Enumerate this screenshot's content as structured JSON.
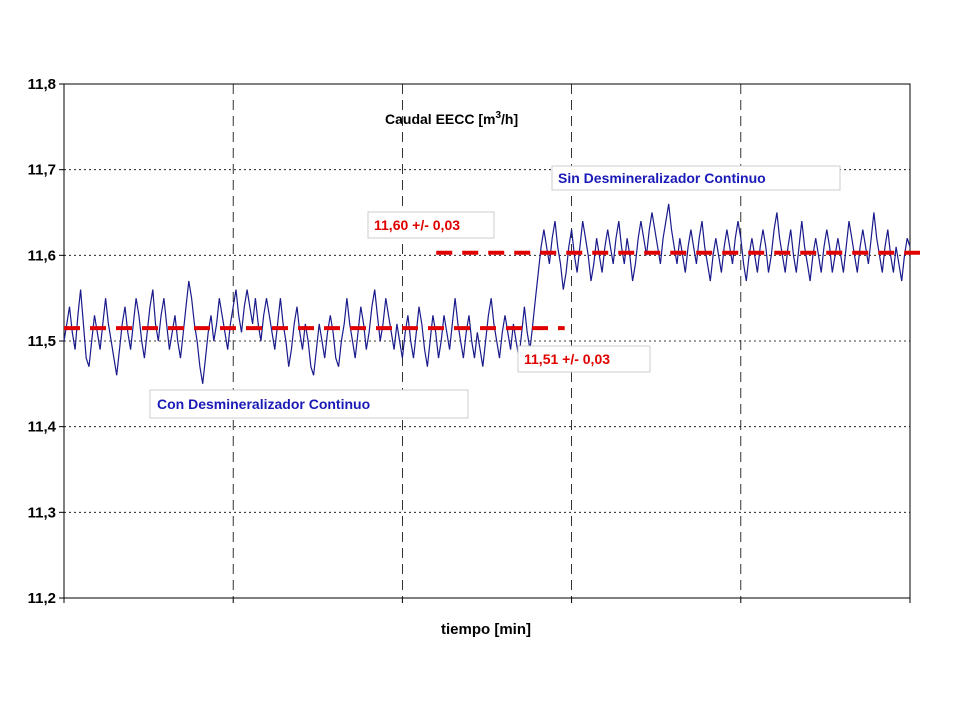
{
  "chart_data": {
    "type": "line",
    "title_prefix": "Caudal EECC [m",
    "title_sup": "3",
    "title_suffix": "/h]",
    "xlabel": "tiempo [min]",
    "ylabel": "",
    "ylim": [
      11.2,
      11.8
    ],
    "yticks": [
      "11,2",
      "11,3",
      "11,4",
      "11,5",
      "11,6",
      "11,7",
      "11,8"
    ],
    "ytick_values": [
      11.2,
      11.3,
      11.4,
      11.5,
      11.6,
      11.7,
      11.8
    ],
    "x_divisions": 5,
    "grid": true,
    "line_color": "#1a1a8c",
    "series": [
      {
        "values": [
          11.5,
          11.52,
          11.54,
          11.51,
          11.49,
          11.53,
          11.56,
          11.52,
          11.48,
          11.47,
          11.5,
          11.53,
          11.51,
          11.49,
          11.52,
          11.55,
          11.52,
          11.5,
          11.48,
          11.46,
          11.49,
          11.52,
          11.54,
          11.51,
          11.49,
          11.52,
          11.55,
          11.53,
          11.5,
          11.48,
          11.51,
          11.54,
          11.56,
          11.52,
          11.5,
          11.53,
          11.55,
          11.52,
          11.49,
          11.51,
          11.53,
          11.5,
          11.48,
          11.51,
          11.54,
          11.57,
          11.55,
          11.52,
          11.5,
          11.47,
          11.45,
          11.48,
          11.51,
          11.53,
          11.5,
          11.52,
          11.55,
          11.53,
          11.51,
          11.49,
          11.52,
          11.54,
          11.56,
          11.53,
          11.51,
          11.54,
          11.56,
          11.54,
          11.52,
          11.55,
          11.52,
          11.5,
          11.53,
          11.55,
          11.53,
          11.51,
          11.49,
          11.52,
          11.55,
          11.52,
          11.5,
          11.47,
          11.49,
          11.52,
          11.54,
          11.51,
          11.49,
          11.52,
          11.5,
          11.47,
          11.46,
          11.49,
          11.52,
          11.5,
          11.48,
          11.51,
          11.53,
          11.51,
          11.48,
          11.47,
          11.5,
          11.52,
          11.55,
          11.52,
          11.5,
          11.48,
          11.51,
          11.54,
          11.52,
          11.49,
          11.51,
          11.54,
          11.56,
          11.53,
          11.5,
          11.52,
          11.55,
          11.53,
          11.51,
          11.49,
          11.52,
          11.5,
          11.48,
          11.51,
          11.53,
          11.5,
          11.48,
          11.51,
          11.54,
          11.52,
          11.49,
          11.47,
          11.5,
          11.53,
          11.51,
          11.48,
          11.5,
          11.53,
          11.51,
          11.49,
          11.52,
          11.55,
          11.52,
          11.5,
          11.48,
          11.51,
          11.53,
          11.5,
          11.48,
          11.51,
          11.49,
          11.47,
          11.5,
          11.53,
          11.55,
          11.52,
          11.5,
          11.48,
          11.51,
          11.53,
          11.51,
          11.49,
          11.52,
          11.5,
          11.48,
          11.51,
          11.54,
          11.51,
          11.49,
          11.52,
          11.55,
          11.58,
          11.61,
          11.63,
          11.61,
          11.59,
          11.62,
          11.64,
          11.61,
          11.59,
          11.56,
          11.58,
          11.61,
          11.63,
          11.6,
          11.58,
          11.61,
          11.64,
          11.62,
          11.6,
          11.57,
          11.59,
          11.62,
          11.6,
          11.58,
          11.61,
          11.63,
          11.61,
          11.59,
          11.62,
          11.64,
          11.61,
          11.59,
          11.62,
          11.6,
          11.57,
          11.59,
          11.62,
          11.64,
          11.62,
          11.6,
          11.63,
          11.65,
          11.63,
          11.61,
          11.59,
          11.62,
          11.64,
          11.66,
          11.63,
          11.61,
          11.59,
          11.62,
          11.6,
          11.58,
          11.61,
          11.63,
          11.61,
          11.59,
          11.62,
          11.64,
          11.61,
          11.59,
          11.57,
          11.6,
          11.62,
          11.6,
          11.58,
          11.61,
          11.63,
          11.61,
          11.59,
          11.62,
          11.64,
          11.62,
          11.59,
          11.57,
          11.6,
          11.62,
          11.6,
          11.58,
          11.61,
          11.63,
          11.61,
          11.58,
          11.6,
          11.63,
          11.65,
          11.62,
          11.6,
          11.58,
          11.61,
          11.63,
          11.6,
          11.58,
          11.61,
          11.64,
          11.61,
          11.59,
          11.57,
          11.6,
          11.62,
          11.6,
          11.58,
          11.61,
          11.63,
          11.61,
          11.58,
          11.6,
          11.62,
          11.6,
          11.58,
          11.61,
          11.64,
          11.62,
          11.6,
          11.58,
          11.61,
          11.63,
          11.61,
          11.59,
          11.62,
          11.65,
          11.62,
          11.6,
          11.58,
          11.61,
          11.63,
          11.6,
          11.58,
          11.61,
          11.59,
          11.57,
          11.6,
          11.62,
          11.61
        ]
      }
    ],
    "mean_lines": [
      {
        "value": 11.515,
        "from": 0.0,
        "to": 0.58,
        "color": "#e00000"
      },
      {
        "value": 11.603,
        "from": 0.44,
        "to": 1.0,
        "color": "#e00000"
      }
    ]
  },
  "annotations": {
    "sin": "Sin Desmineralizador Continuo",
    "con": "Con Desmineralizador Continuo",
    "mean_high": "11,60 +/- 0,03",
    "mean_low": "11,51 +/- 0,03"
  }
}
